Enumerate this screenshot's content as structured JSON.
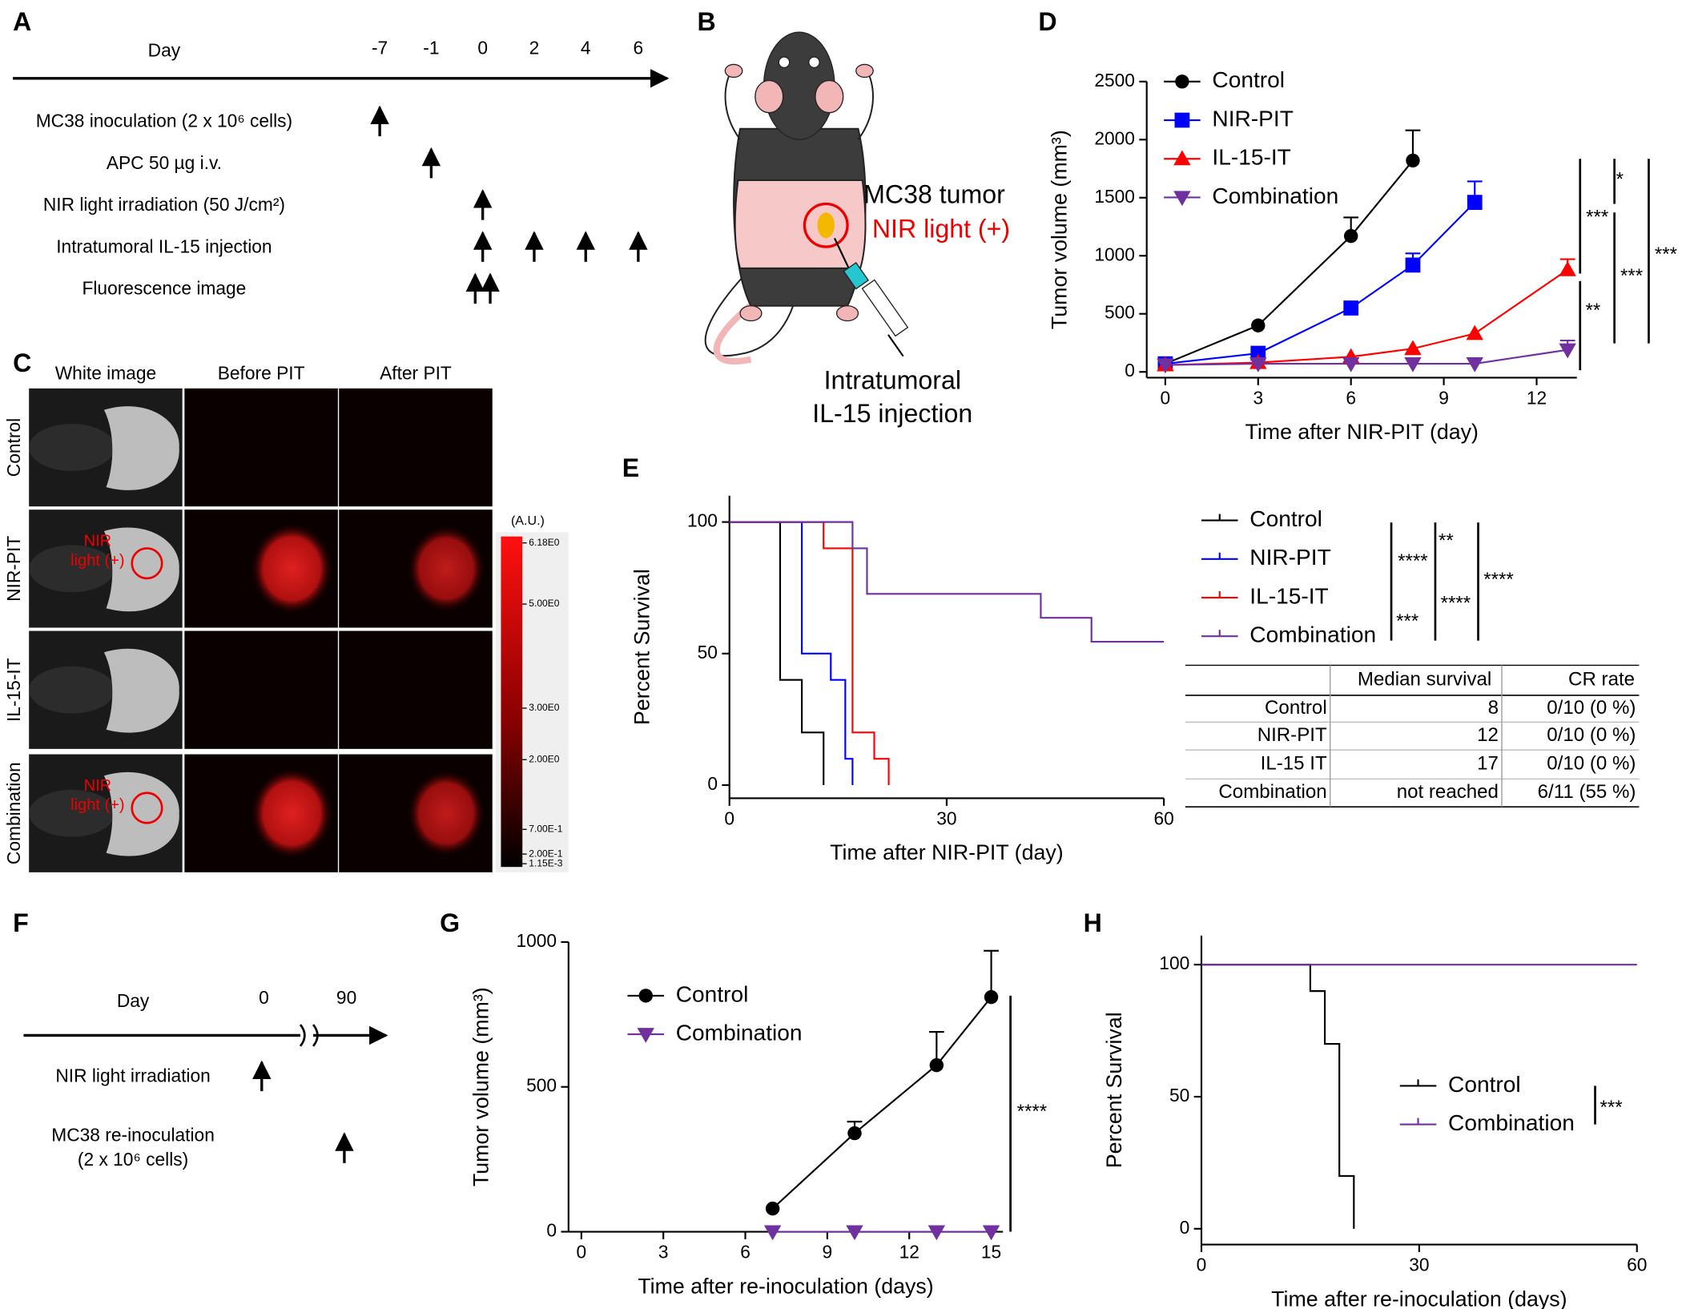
{
  "panels": [
    "A",
    "B",
    "C",
    "D",
    "E",
    "F",
    "G",
    "H"
  ],
  "timeline_a": {
    "day_label": "Day",
    "days": [
      -7,
      -1,
      0,
      2,
      4,
      6
    ],
    "rows": [
      {
        "label": "MC38 inoculation (2 x 10⁶ cells)",
        "days": [
          -7
        ]
      },
      {
        "label": "APC 50 µg i.v.",
        "days": [
          -1
        ]
      },
      {
        "label": "NIR light irradiation (50 J/cm²)",
        "days": [
          0
        ]
      },
      {
        "label": "Intratumoral IL-15 injection",
        "days": [
          0,
          2,
          4,
          6
        ]
      },
      {
        "label": "Fluorescence image",
        "days": [
          0,
          0
        ]
      }
    ]
  },
  "schema_b": {
    "tumor": "MC38 tumor",
    "light": "NIR light (+)",
    "injection": [
      "Intratumoral",
      "IL-15 injection"
    ]
  },
  "images_c": {
    "columns": [
      "White image",
      "Before PIT",
      "After PIT"
    ],
    "rows": [
      "Control",
      "NIR-PIT",
      "IL-15-IT",
      "Combination"
    ],
    "overlay": [
      "NIR",
      "light (+)"
    ],
    "colorbar_label": "(A.U.)",
    "colorbar_ticks": [
      {
        "value": 6.18,
        "label": "6.18E0"
      },
      {
        "value": 5,
        "label": "5.00E0"
      },
      {
        "value": 3,
        "label": "3.00E0"
      },
      {
        "value": 2,
        "label": "2.00E0"
      },
      {
        "value": 0.7,
        "label": "7.00E-1"
      },
      {
        "value": 0.2,
        "label": "2.00E-1"
      },
      {
        "value": 0.00115,
        "label": "1.15E-3"
      }
    ]
  },
  "timeline_f": {
    "day_label": "Day",
    "days": [
      0,
      90
    ],
    "rows": [
      {
        "label": [
          "NIR light irradiation"
        ],
        "days": [
          0
        ]
      },
      {
        "label": [
          "MC38 re-inoculation",
          "(2 x 10⁶ cells)"
        ],
        "days": [
          90
        ]
      }
    ]
  },
  "chart_data": [
    {
      "type": "line",
      "xlabel": "Time after NIR-PIT (day)",
      "ylabel": "Tumor volume (mm³)",
      "x": [
        0,
        3,
        6,
        8,
        10,
        13
      ],
      "xlim": [
        -0.6,
        13.3
      ],
      "xticks": [
        0,
        3,
        6,
        9,
        12
      ],
      "ylim": [
        -50,
        2500
      ],
      "yticks": [
        0,
        500,
        1000,
        1500,
        2000,
        2500
      ],
      "series": [
        {
          "name": "Control",
          "color": "#000000",
          "marker": "circle",
          "values": [
            70,
            400,
            1170,
            1820,
            null,
            null
          ],
          "errors": [
            null,
            null,
            160,
            260,
            null,
            null
          ]
        },
        {
          "name": "NIR-PIT",
          "color": "#0000ff",
          "marker": "square",
          "values": [
            70,
            160,
            550,
            920,
            1460,
            null
          ],
          "errors": [
            null,
            null,
            null,
            100,
            180,
            null
          ]
        },
        {
          "name": "IL-15-IT",
          "color": "#ff0000",
          "marker": "triangle-up",
          "values": [
            60,
            80,
            130,
            200,
            330,
            880
          ],
          "errors": [
            null,
            null,
            null,
            null,
            null,
            90
          ]
        },
        {
          "name": "Combination",
          "color": "#7030a0",
          "marker": "triangle-down",
          "values": [
            60,
            70,
            70,
            70,
            70,
            190
          ],
          "errors": [
            null,
            null,
            null,
            null,
            null,
            80
          ]
        }
      ],
      "annotations": [
        "*",
        "***",
        "***",
        "***",
        "**"
      ]
    },
    {
      "type": "survival",
      "xlabel": "Time after NIR-PIT (day)",
      "ylabel": "Percent Survival",
      "xlim": [
        0,
        60
      ],
      "xticks": [
        0,
        30,
        60
      ],
      "ylim": [
        -5,
        110
      ],
      "yticks": [
        0,
        50,
        100
      ],
      "series": [
        {
          "name": "Control",
          "color": "#000000",
          "x": [
            0,
            7,
            10,
            13
          ],
          "values": [
            100,
            40,
            20,
            0
          ]
        },
        {
          "name": "NIR-PIT",
          "color": "#0000ff",
          "x": [
            0,
            10,
            14,
            16,
            17
          ],
          "values": [
            100,
            50,
            40,
            10,
            0
          ]
        },
        {
          "name": "IL-15-IT",
          "color": "#ff0000",
          "x": [
            0,
            13,
            17,
            20,
            22
          ],
          "values": [
            100,
            90,
            20,
            10,
            0
          ]
        },
        {
          "name": "Combination",
          "color": "#7030a0",
          "x": [
            0,
            17,
            19,
            43,
            50,
            60
          ],
          "values": [
            100,
            90,
            72.7,
            63.6,
            54.5,
            54.5
          ]
        }
      ],
      "annotations": [
        "****",
        "**",
        "****",
        "***",
        "****"
      ],
      "table": {
        "columns": [
          "Median survival",
          "CR rate"
        ],
        "rows": [
          [
            "Control",
            8,
            "0/10 (0 %)"
          ],
          [
            "NIR-PIT",
            12,
            "0/10 (0 %)"
          ],
          [
            "IL-15 IT",
            17,
            "0/10 (0 %)"
          ],
          [
            "Combination",
            "not reached",
            "6/11 (55 %)"
          ]
        ]
      }
    },
    {
      "type": "line",
      "xlabel": "Time after re-inoculation (days)",
      "ylabel": "Tumor volume (mm³)",
      "x": [
        7,
        10,
        13,
        15
      ],
      "xlim": [
        -0.47,
        15.43
      ],
      "xticks": [
        0,
        3,
        6,
        9,
        12,
        15
      ],
      "ylim": [
        0,
        1000
      ],
      "yticks": [
        0,
        500,
        1000
      ],
      "series": [
        {
          "name": "Control",
          "color": "#000000",
          "marker": "circle",
          "values": [
            80,
            340,
            575,
            810
          ],
          "errors": [
            null,
            40,
            115,
            160
          ]
        },
        {
          "name": "Combination",
          "color": "#7030a0",
          "marker": "triangle-down",
          "values": [
            0,
            0,
            0,
            0
          ],
          "errors": [
            null,
            null,
            null,
            null
          ]
        }
      ],
      "annotations": [
        "****"
      ]
    },
    {
      "type": "survival",
      "xlabel": "Time after re-inoculation (days)",
      "ylabel": "Percent Survival",
      "xlim": [
        0,
        60
      ],
      "xticks": [
        0,
        30,
        60
      ],
      "ylim": [
        -6,
        111
      ],
      "yticks": [
        0,
        50,
        100
      ],
      "series": [
        {
          "name": "Control",
          "color": "#000000",
          "x": [
            0,
            15,
            17,
            19,
            21
          ],
          "values": [
            100,
            90,
            70,
            20,
            0
          ]
        },
        {
          "name": "Combination",
          "color": "#7030a0",
          "x": [
            0,
            60
          ],
          "values": [
            100,
            100
          ]
        }
      ],
      "annotations": [
        "***"
      ]
    }
  ]
}
